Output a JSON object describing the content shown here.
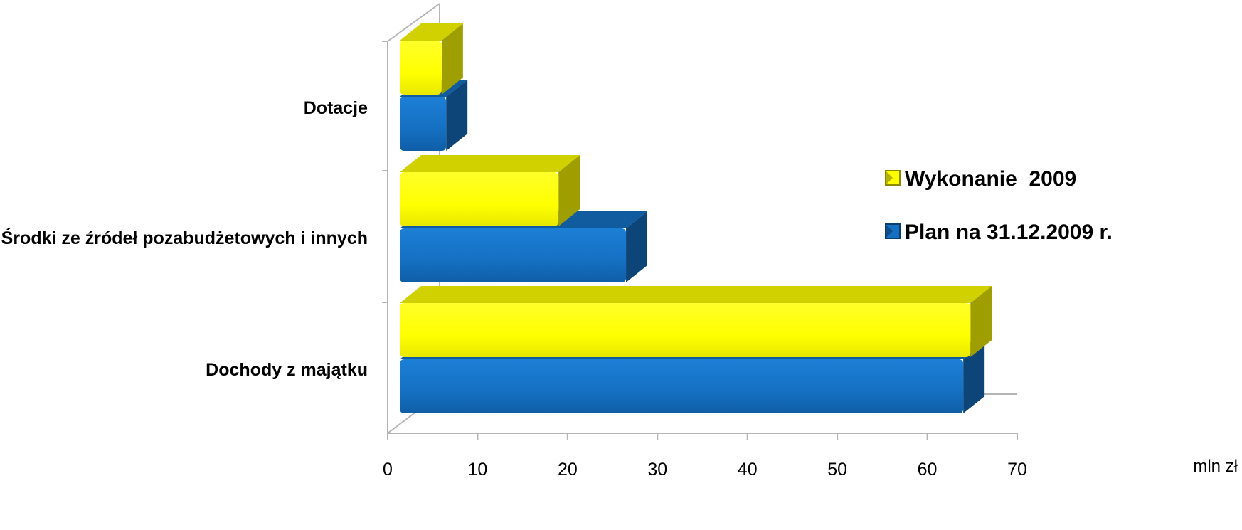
{
  "chart_data": {
    "type": "bar",
    "orientation": "horizontal",
    "style": "3d",
    "categories": [
      "Dochody z majątku",
      "Środki ze źródeł pozabudżetowych i innych",
      "Dotacje"
    ],
    "series": [
      {
        "name": "Plan na 31.12.2009 r.",
        "values": [
          64.0,
          26.5,
          6.5
        ],
        "color": "#1570c2"
      },
      {
        "name": "Wykonanie  2009",
        "values": [
          64.8,
          19.0,
          6.0
        ],
        "color": "#ffff00"
      }
    ],
    "xlim": [
      0,
      70
    ],
    "xticks": [
      "0",
      "10",
      "20",
      "30",
      "40",
      "50",
      "60",
      "70"
    ],
    "unit_label": "mln zł",
    "legend_position": "right",
    "grid": false
  }
}
